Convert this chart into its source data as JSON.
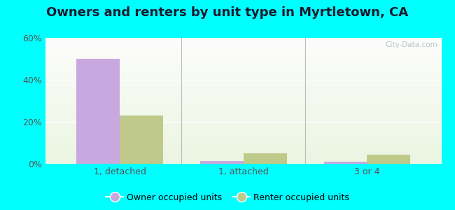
{
  "title": "Owners and renters by unit type in Myrtletown, CA",
  "categories": [
    "1, detached",
    "1, attached",
    "3 or 4"
  ],
  "owner_values": [
    50,
    1.5,
    1.0
  ],
  "renter_values": [
    23,
    5,
    4.5
  ],
  "owner_color": "#c9a8e0",
  "renter_color": "#bfc98a",
  "ylim": [
    0,
    60
  ],
  "yticks": [
    0,
    20,
    40,
    60
  ],
  "ytick_labels": [
    "0%",
    "20%",
    "40%",
    "60%"
  ],
  "outer_bg": "#00ffff",
  "legend_owner": "Owner occupied units",
  "legend_renter": "Renter occupied units",
  "watermark": "City-Data.com",
  "bar_width": 0.35,
  "title_fontsize": 13,
  "tick_fontsize": 9
}
